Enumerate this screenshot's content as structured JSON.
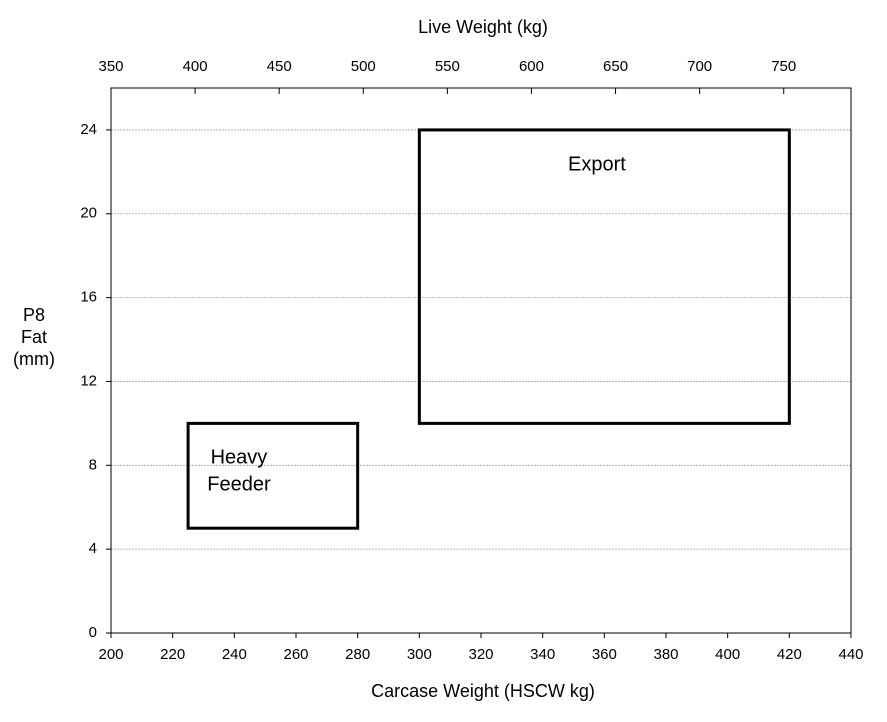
{
  "chart_data": {
    "type": "region",
    "x_label": "Carcase Weight (HSCW kg)",
    "x2_label": "Live Weight (kg)",
    "y_label": [
      "P8",
      "Fat",
      "(mm)"
    ],
    "xlim": [
      200,
      440
    ],
    "xticks": [
      200,
      220,
      240,
      260,
      280,
      300,
      320,
      340,
      360,
      380,
      400,
      420,
      440
    ],
    "x2lim": [
      350,
      790
    ],
    "x2ticks": [
      350,
      400,
      450,
      500,
      550,
      600,
      650,
      700,
      750
    ],
    "ylim": [
      0,
      26
    ],
    "yticks": [
      0,
      4,
      8,
      12,
      16,
      20,
      24
    ],
    "grid": true,
    "color": "#000000",
    "regions": [
      {
        "name": [
          "Heavy",
          "Feeder"
        ],
        "x": [
          225,
          280
        ],
        "y": [
          5,
          10
        ]
      },
      {
        "name": [
          "Export"
        ],
        "x": [
          300,
          420
        ],
        "y": [
          10,
          24
        ]
      }
    ]
  }
}
